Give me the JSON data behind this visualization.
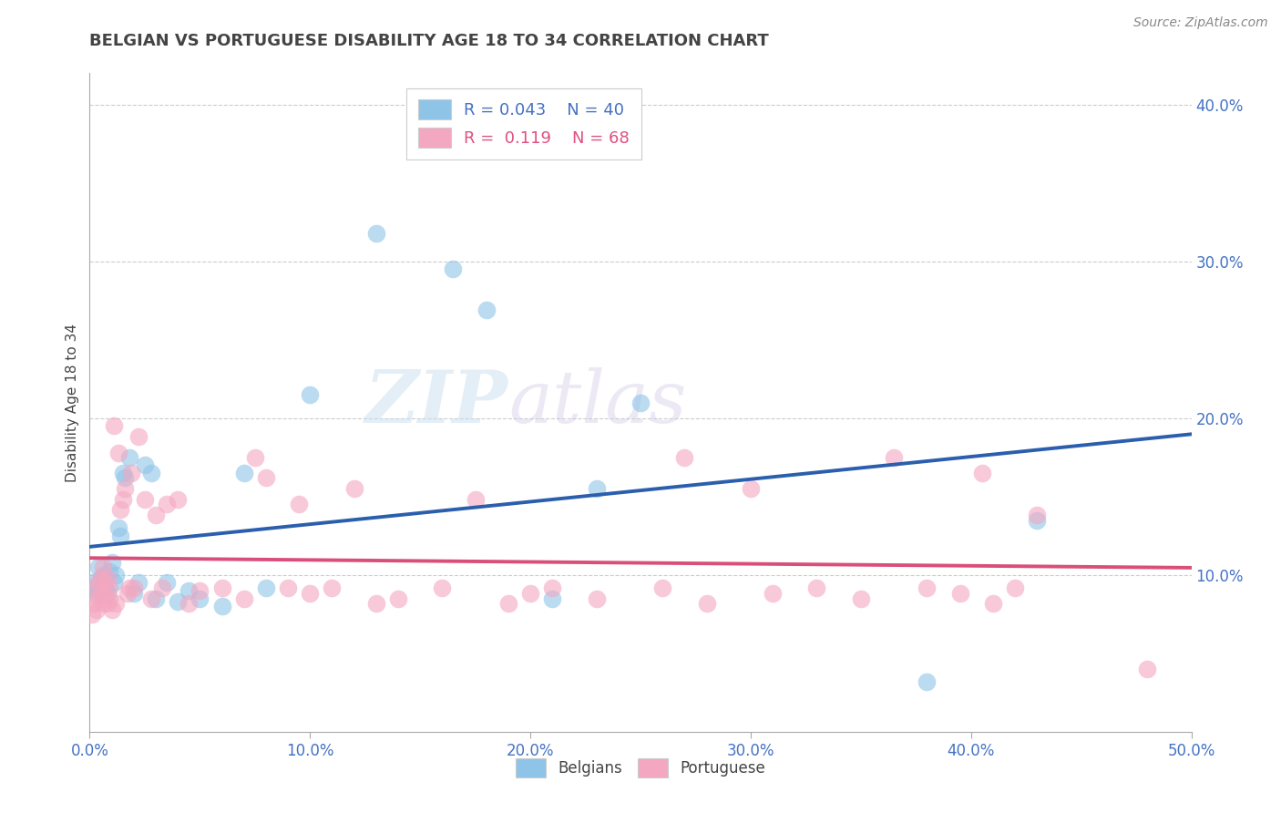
{
  "title": "BELGIAN VS PORTUGUESE DISABILITY AGE 18 TO 34 CORRELATION CHART",
  "source_text": "Source: ZipAtlas.com",
  "ylabel": "Disability Age 18 to 34",
  "xlim": [
    0.0,
    0.5
  ],
  "ylim": [
    0.0,
    0.42
  ],
  "xticks": [
    0.0,
    0.1,
    0.2,
    0.3,
    0.4,
    0.5
  ],
  "yticks": [
    0.1,
    0.2,
    0.3,
    0.4
  ],
  "xticklabels": [
    "0.0%",
    "10.0%",
    "20.0%",
    "30.0%",
    "40.0%",
    "50.0%"
  ],
  "yticklabels": [
    "10.0%",
    "20.0%",
    "30.0%",
    "40.0%"
  ],
  "belgian_color": "#8ec4e8",
  "portuguese_color": "#f4a7c0",
  "trendline_belgian_color": "#2b5fad",
  "trendline_portuguese_color": "#d94f7a",
  "legend_R_belgian": "R = 0.043",
  "legend_N_belgian": "N = 40",
  "legend_R_portuguese": "R =  0.119",
  "legend_N_portuguese": "N = 68",
  "watermark_zip": "ZIP",
  "watermark_atlas": "atlas",
  "belgian_x": [
    0.001,
    0.002,
    0.003,
    0.004,
    0.005,
    0.005,
    0.006,
    0.007,
    0.007,
    0.008,
    0.009,
    0.01,
    0.011,
    0.012,
    0.013,
    0.014,
    0.015,
    0.016,
    0.018,
    0.02,
    0.022,
    0.025,
    0.028,
    0.03,
    0.035,
    0.04,
    0.045,
    0.05,
    0.06,
    0.07,
    0.08,
    0.1,
    0.13,
    0.165,
    0.18,
    0.21,
    0.23,
    0.25,
    0.38,
    0.43
  ],
  "belgian_y": [
    0.095,
    0.092,
    0.088,
    0.105,
    0.098,
    0.09,
    0.1,
    0.092,
    0.096,
    0.088,
    0.102,
    0.108,
    0.095,
    0.1,
    0.13,
    0.125,
    0.165,
    0.162,
    0.175,
    0.088,
    0.095,
    0.17,
    0.165,
    0.085,
    0.095,
    0.083,
    0.09,
    0.085,
    0.08,
    0.165,
    0.092,
    0.215,
    0.318,
    0.295,
    0.269,
    0.085,
    0.155,
    0.21,
    0.032,
    0.135
  ],
  "portuguese_x": [
    0.001,
    0.002,
    0.003,
    0.003,
    0.004,
    0.004,
    0.005,
    0.005,
    0.006,
    0.006,
    0.007,
    0.007,
    0.008,
    0.008,
    0.009,
    0.009,
    0.01,
    0.011,
    0.012,
    0.013,
    0.014,
    0.015,
    0.016,
    0.017,
    0.018,
    0.019,
    0.02,
    0.022,
    0.025,
    0.028,
    0.03,
    0.033,
    0.035,
    0.04,
    0.045,
    0.05,
    0.06,
    0.07,
    0.075,
    0.08,
    0.09,
    0.095,
    0.1,
    0.11,
    0.12,
    0.13,
    0.14,
    0.16,
    0.175,
    0.19,
    0.2,
    0.21,
    0.23,
    0.26,
    0.27,
    0.28,
    0.3,
    0.31,
    0.33,
    0.35,
    0.365,
    0.38,
    0.395,
    0.405,
    0.41,
    0.42,
    0.43,
    0.48
  ],
  "portuguese_y": [
    0.075,
    0.082,
    0.078,
    0.092,
    0.085,
    0.095,
    0.088,
    0.098,
    0.082,
    0.105,
    0.088,
    0.095,
    0.082,
    0.098,
    0.085,
    0.092,
    0.078,
    0.195,
    0.082,
    0.178,
    0.142,
    0.148,
    0.155,
    0.088,
    0.092,
    0.165,
    0.092,
    0.188,
    0.148,
    0.085,
    0.138,
    0.092,
    0.145,
    0.148,
    0.082,
    0.09,
    0.092,
    0.085,
    0.175,
    0.162,
    0.092,
    0.145,
    0.088,
    0.092,
    0.155,
    0.082,
    0.085,
    0.092,
    0.148,
    0.082,
    0.088,
    0.092,
    0.085,
    0.092,
    0.175,
    0.082,
    0.155,
    0.088,
    0.092,
    0.085,
    0.175,
    0.092,
    0.088,
    0.165,
    0.082,
    0.092,
    0.138,
    0.04
  ]
}
